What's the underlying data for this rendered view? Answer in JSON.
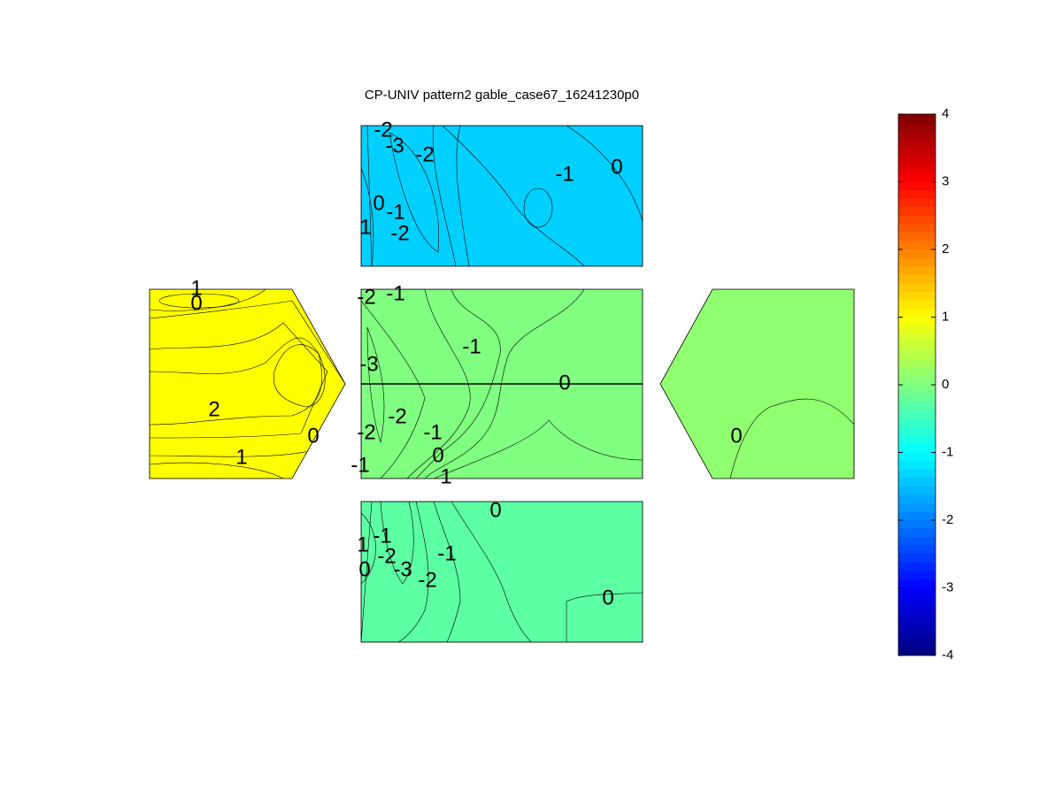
{
  "chart_data": {
    "type": "contour",
    "title": "CP-UNIV pattern2 gable_case67_16241230p0",
    "colormap": "jet",
    "clim": [
      -4,
      4
    ],
    "cticks": [
      -4,
      -3,
      -2,
      -1,
      0,
      1,
      2,
      3,
      4
    ],
    "panels": [
      {
        "labels": [
          -2,
          -3,
          -2,
          -1,
          0,
          0,
          -1,
          -2,
          1
        ]
      },
      {
        "labels": [
          -2,
          -1,
          -1,
          -3,
          0,
          -2,
          -2,
          -1,
          0,
          -1,
          1
        ]
      },
      {
        "labels": [
          1,
          0,
          2,
          0,
          1
        ]
      },
      {
        "labels": [
          0
        ]
      },
      {
        "labels": [
          0,
          1,
          -1,
          -2,
          0,
          -3,
          -2,
          -1,
          0
        ]
      }
    ]
  }
}
